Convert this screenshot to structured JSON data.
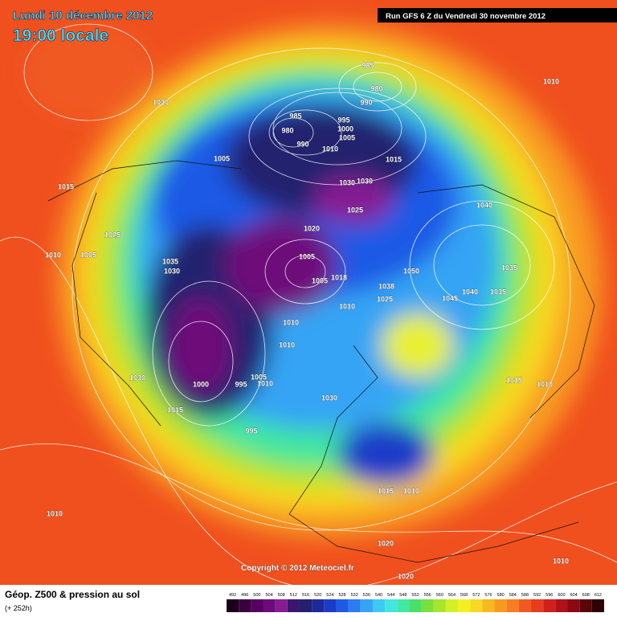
{
  "header": {
    "date": "Lundi 10 décembre 2012",
    "time": "19:00 locale",
    "run": "Run GFS 6 Z du Vendredi 30 novembre 2012"
  },
  "footer": {
    "title": "Géop. Z500 & pression au sol",
    "subtitle": "(+ 252h)",
    "copyright": "Copyright © 2012 Meteociel.fr"
  },
  "scale": {
    "labels": [
      "492",
      "496",
      "500",
      "504",
      "508",
      "512",
      "516",
      "520",
      "524",
      "528",
      "532",
      "536",
      "540",
      "544",
      "548",
      "552",
      "556",
      "560",
      "564",
      "568",
      "572",
      "576",
      "580",
      "584",
      "588",
      "592",
      "596",
      "600",
      "604",
      "608",
      "612"
    ],
    "colors": [
      "#1c001c",
      "#3a003e",
      "#560060",
      "#6e0a7a",
      "#861c94",
      "#3a1670",
      "#24206e",
      "#1c2a9a",
      "#1a3cc8",
      "#1e5ae6",
      "#2a7ef0",
      "#34a4f4",
      "#3ccaf4",
      "#40e6e0",
      "#40e8a4",
      "#48e068",
      "#78e03c",
      "#a8e62c",
      "#d4f024",
      "#f4f020",
      "#f8d820",
      "#f8b820",
      "#f89a20",
      "#f87c20",
      "#f05a20",
      "#e83c1e",
      "#d0201c",
      "#b01018",
      "#8c0812",
      "#5c040a",
      "#2c0204"
    ]
  },
  "isobar_labels": [
    "1030",
    "1005",
    "1015",
    "1025",
    "1010",
    "1005",
    "1035",
    "1030",
    "985",
    "980",
    "990",
    "985",
    "995",
    "980",
    "1000",
    "1005",
    "990",
    "1010",
    "1015",
    "1030",
    "1030",
    "1025",
    "1020",
    "1005",
    "1005",
    "1018",
    "1010",
    "1038",
    "1025",
    "1050",
    "1045",
    "1040",
    "1035",
    "1035",
    "1040",
    "1010",
    "1010",
    "1010",
    "1030",
    "1000",
    "995",
    "1005",
    "1010",
    "1015",
    "995",
    "1030",
    "1015",
    "1010",
    "1015",
    "1010",
    "1010",
    "1020",
    "1010",
    "1020"
  ]
}
